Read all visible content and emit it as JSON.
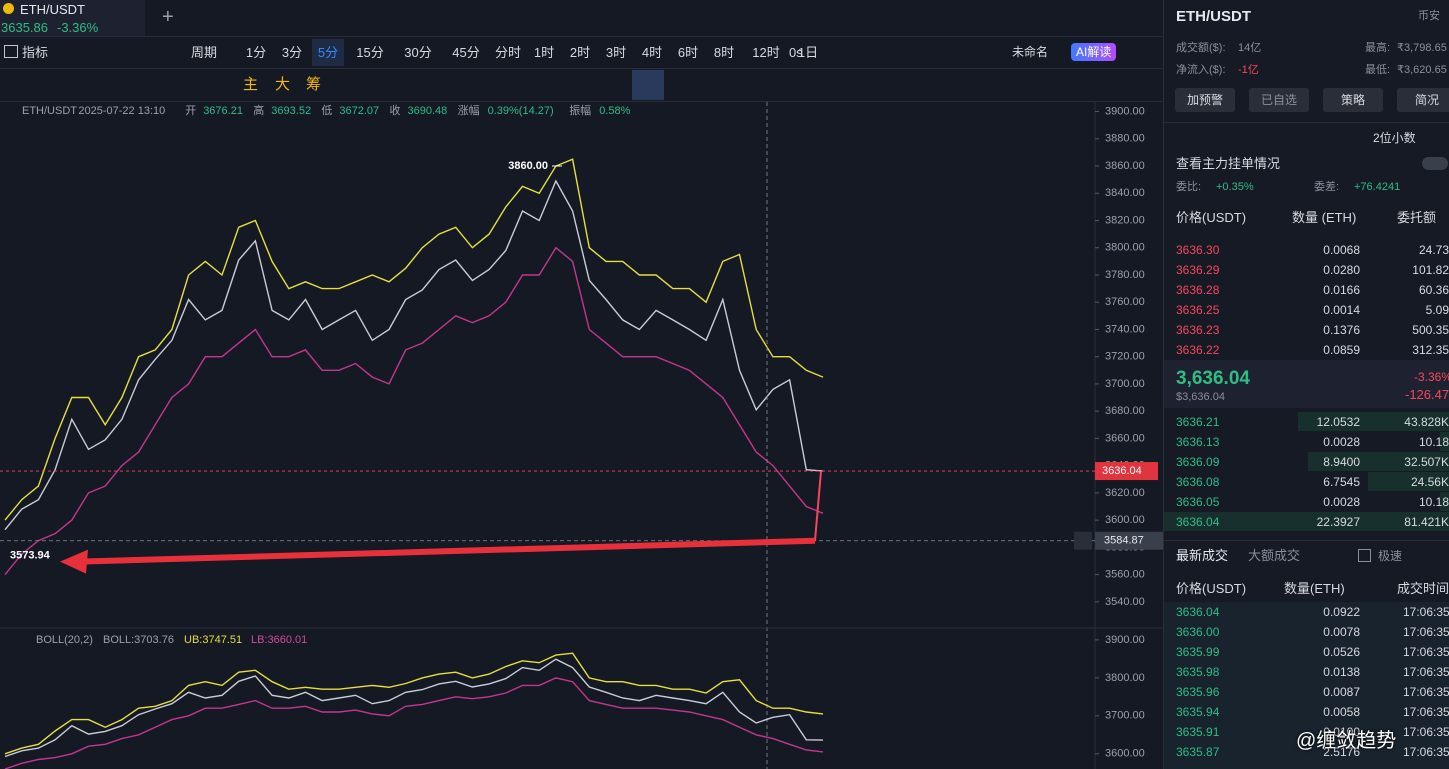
{
  "header": {
    "symbol": "ETH/USDT",
    "price": "3635.86",
    "change": "-3.36%",
    "add_tab": "+"
  },
  "toolbar": {
    "indicators": "指标",
    "period": "周期",
    "intervals": [
      "1分",
      "3分",
      "5分",
      "15分",
      "30分",
      "45分",
      "分时",
      "1时",
      "2时",
      "3时",
      "4时",
      "6时",
      "8时",
      "12时",
      "1日"
    ],
    "active_interval": 2,
    "timer": "0s",
    "layout_name": "未命名",
    "ai": "AI解读"
  },
  "drawing_tools": [
    "主",
    "大",
    "筹"
  ],
  "chart_data": [
    {
      "type": "line",
      "info": [
        "ETH/USDT",
        "2025-07-22 13:10",
        "开",
        "3676.21",
        "高",
        "3693.52",
        "低",
        "3672.07",
        "收",
        "3690.48",
        "涨幅",
        "0.39%(14.27)",
        "振幅",
        "0.58%"
      ],
      "ylim": [
        3523,
        3907
      ],
      "yticks": [
        {
          "value": 3540,
          "label": "3540.00"
        },
        {
          "value": 3560,
          "label": "3560.00"
        },
        {
          "value": 3580,
          "label": "3580.00"
        },
        {
          "value": 3600,
          "label": "3600.00"
        },
        {
          "value": 3620,
          "label": "3620.00"
        },
        {
          "value": 3640,
          "label": "3640.00"
        },
        {
          "value": 3660,
          "label": "3660.00"
        },
        {
          "value": 3680,
          "label": "3680.00"
        },
        {
          "value": 3700,
          "label": "3700.00"
        },
        {
          "value": 3720,
          "label": "3720.00"
        },
        {
          "value": 3740,
          "label": "3740.00"
        },
        {
          "value": 3760,
          "label": "3760.00"
        },
        {
          "value": 3780,
          "label": "3780.00"
        },
        {
          "value": 3800,
          "label": "3800.00"
        },
        {
          "value": 3820,
          "label": "3820.00"
        },
        {
          "value": 3840,
          "label": "3840.00"
        },
        {
          "value": 3860,
          "label": "3860.00"
        },
        {
          "value": 3880,
          "label": "3880.00"
        },
        {
          "value": 3900,
          "label": "3900.00"
        }
      ],
      "series": [
        {
          "color": "#c9ccd6",
          "values": [
            3593,
            3608,
            3615,
            3637,
            3674,
            3652,
            3659,
            3674,
            3703,
            3718,
            3732,
            3762,
            3747,
            3754,
            3791,
            3805,
            3754,
            3747,
            3762,
            3740,
            3747,
            3754,
            3732,
            3740,
            3762,
            3769,
            3784,
            3791,
            3776,
            3784,
            3798,
            3827,
            3820,
            3849,
            3827,
            3776,
            3762,
            3747,
            3740,
            3754,
            3747,
            3740,
            3732,
            3762,
            3710,
            3681,
            3696,
            3703,
            3637,
            3636
          ]
        },
        {
          "color": "#e6df3c",
          "values": [
            3600,
            3615,
            3625,
            3660,
            3690,
            3690,
            3670,
            3690,
            3720,
            3725,
            3740,
            3780,
            3790,
            3780,
            3815,
            3820,
            3790,
            3770,
            3775,
            3770,
            3770,
            3775,
            3780,
            3775,
            3785,
            3800,
            3810,
            3815,
            3800,
            3810,
            3830,
            3845,
            3840,
            3860,
            3865,
            3800,
            3790,
            3790,
            3780,
            3780,
            3770,
            3770,
            3760,
            3790,
            3795,
            3740,
            3720,
            3720,
            3710,
            3705
          ]
        },
        {
          "color": "#c2378f",
          "values": [
            3560,
            3575,
            3585,
            3590,
            3600,
            3620,
            3625,
            3640,
            3650,
            3670,
            3690,
            3700,
            3720,
            3720,
            3730,
            3740,
            3720,
            3720,
            3725,
            3710,
            3710,
            3715,
            3705,
            3700,
            3725,
            3730,
            3740,
            3750,
            3745,
            3750,
            3760,
            3780,
            3780,
            3800,
            3790,
            3740,
            3730,
            3720,
            3720,
            3720,
            3715,
            3710,
            3700,
            3690,
            3670,
            3650,
            3640,
            3625,
            3610,
            3605
          ]
        }
      ],
      "high_marker": {
        "value": 3860,
        "label": "3860.00"
      },
      "low_marker": 3573.94,
      "last_price": 3636.04,
      "crosshair_price": 3584.87
    },
    {
      "type": "line",
      "legend": [
        "BOLL(20,2)",
        "BOLL:3703.76",
        "UB:3747.51",
        "LB:3660.01"
      ],
      "ylim": [
        3560,
        3926
      ],
      "yticks": [
        {
          "value": 3600,
          "label": "3600.00"
        },
        {
          "value": 3700,
          "label": "3700.00"
        },
        {
          "value": 3800,
          "label": "3800.00"
        },
        {
          "value": 3900,
          "label": "3900.00"
        }
      ]
    }
  ],
  "panel": {
    "symbol": "ETH/USDT",
    "exchange": "币安",
    "stats": [
      [
        "成交额($):",
        "14亿"
      ],
      [
        "最高:",
        "₹3,798.65"
      ],
      [
        "净流入($):",
        "-1亿"
      ],
      [
        "最低:",
        "₹3,620.65"
      ]
    ],
    "buttons": [
      "加预警",
      "已自选",
      "策略",
      "简况"
    ],
    "decimals": "2位小数",
    "main_orders": "查看主力挂单情况",
    "ratio_label": "委比:",
    "ratio": "+0.35%",
    "diff_label": "委差:",
    "diff": "+76.4241",
    "book_header": [
      "价格(USDT)",
      "数量 (ETH)",
      "委托额"
    ],
    "asks": [
      [
        "3636.30",
        "0.0068",
        "24.73"
      ],
      [
        "3636.29",
        "0.0280",
        "101.82"
      ],
      [
        "3636.28",
        "0.0166",
        "60.36"
      ],
      [
        "3636.25",
        "0.0014",
        "5.09"
      ],
      [
        "3636.23",
        "0.1376",
        "500.35"
      ],
      [
        "3636.22",
        "0.0859",
        "312.35"
      ]
    ],
    "last": "3,636.04",
    "last_usd": "$3,636.04",
    "last_change": "-3.36%",
    "last_change_abs": "-126.47",
    "bids": [
      [
        "3636.21",
        "12.0532",
        "43.828K"
      ],
      [
        "3636.13",
        "0.0028",
        "10.18"
      ],
      [
        "3636.09",
        "8.9400",
        "32.507K"
      ],
      [
        "3636.08",
        "6.7545",
        "24.56K"
      ],
      [
        "3636.05",
        "0.0028",
        "10.18"
      ],
      [
        "3636.04",
        "22.3927",
        "81.421K"
      ]
    ],
    "trade_tabs": [
      "最新成交",
      "大额成交"
    ],
    "fast": "极速",
    "trade_header": [
      "价格(USDT)",
      "数量(ETH)",
      "成交时间"
    ],
    "trades": [
      [
        "3636.04",
        "0.0922",
        "17:06:35"
      ],
      [
        "3636.00",
        "0.0078",
        "17:06:35"
      ],
      [
        "3635.99",
        "0.0526",
        "17:06:35"
      ],
      [
        "3635.98",
        "0.0138",
        "17:06:35"
      ],
      [
        "3635.96",
        "0.0087",
        "17:06:35"
      ],
      [
        "3635.94",
        "0.0058",
        "17:06:35"
      ],
      [
        "3635.91",
        "0.0100",
        "17:06:35"
      ],
      [
        "3635.87",
        "2.5176",
        "17:06:35"
      ]
    ],
    "watermark": "@缠敛趋势"
  }
}
